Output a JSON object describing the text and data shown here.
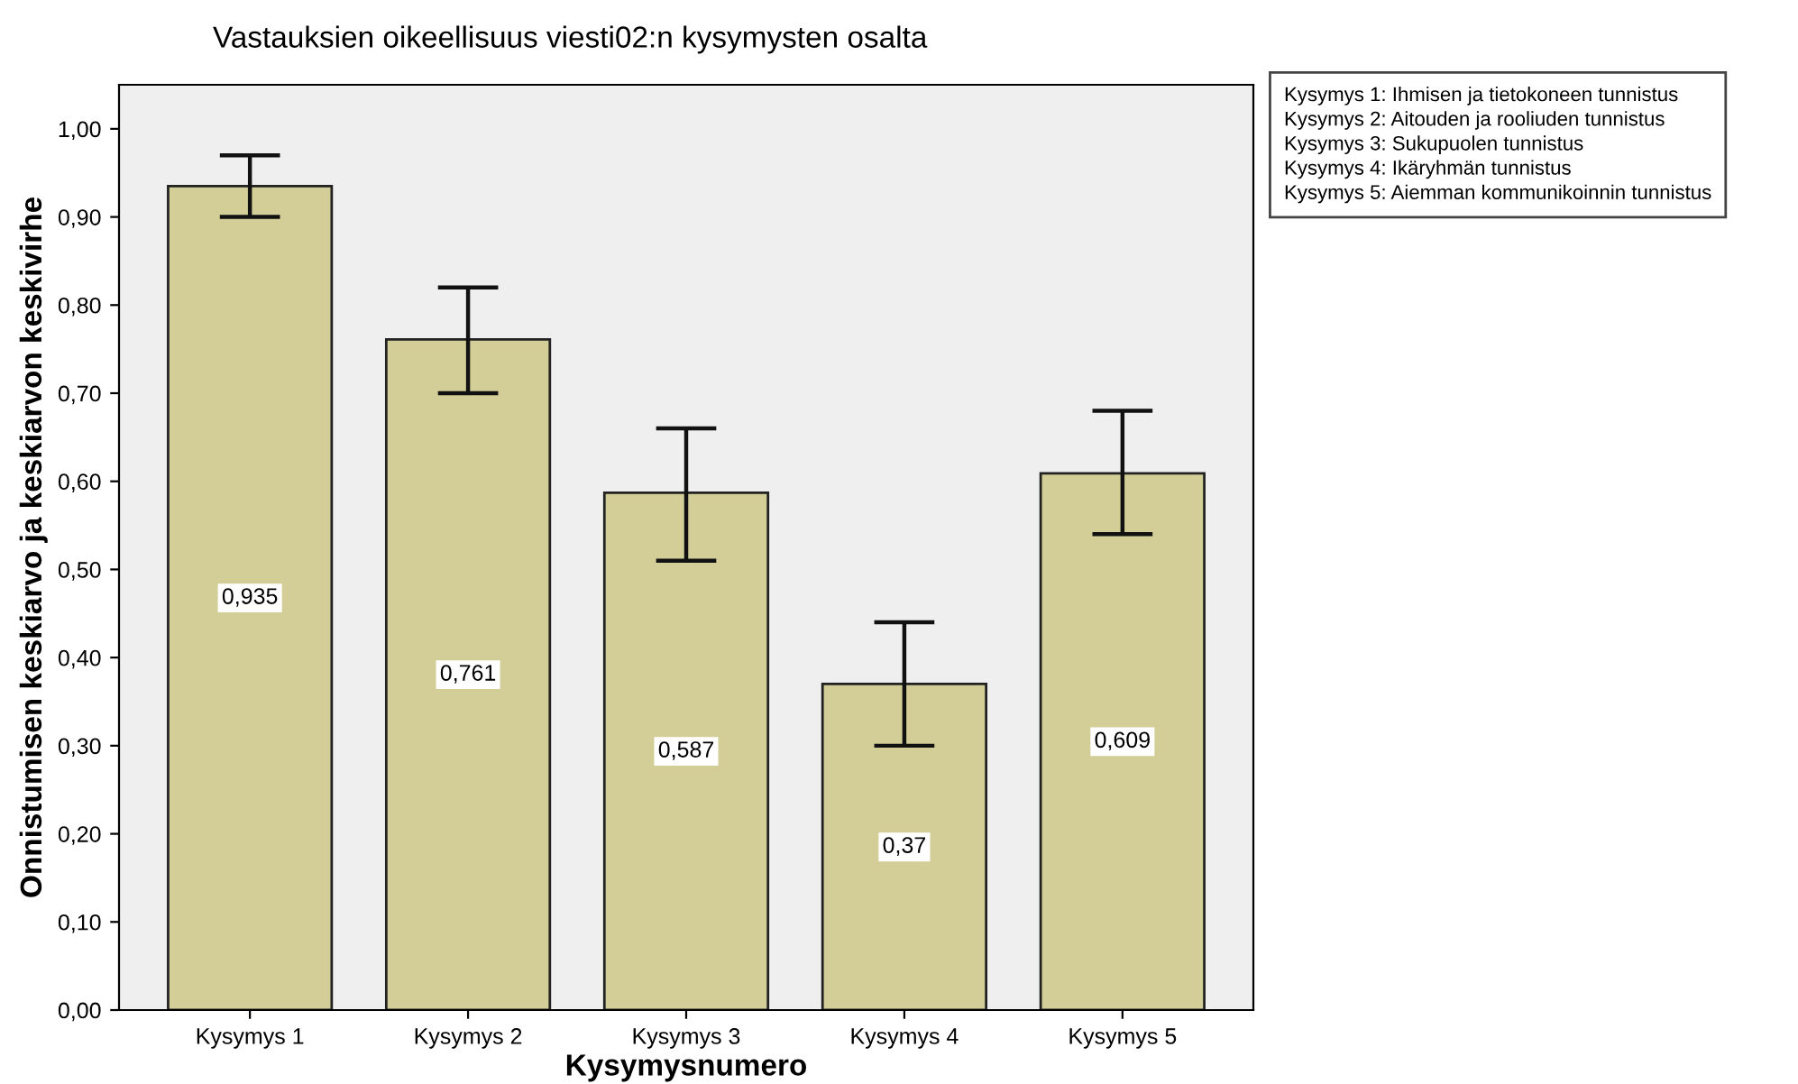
{
  "chart_data": {
    "type": "bar",
    "title": "Vastauksien oikeellisuus viesti02:n kysymysten osalta",
    "xlabel": "Kysymysnumero",
    "ylabel": "Onnistumisen keskiarvo ja keskiarvon keskivirhe",
    "categories": [
      "Kysymys 1",
      "Kysymys 2",
      "Kysymys 3",
      "Kysymys 4",
      "Kysymys 5"
    ],
    "values": [
      0.935,
      0.761,
      0.587,
      0.37,
      0.609
    ],
    "errors": [
      [
        0.9,
        0.97
      ],
      [
        0.7,
        0.82
      ],
      [
        0.51,
        0.66
      ],
      [
        0.3,
        0.44
      ],
      [
        0.54,
        0.68
      ]
    ],
    "color": "#d3ce97",
    "value_labels": [
      "0,935",
      "0,761",
      "0,587",
      "0,37",
      "0,609"
    ],
    "ylim": [
      0,
      1.05
    ],
    "yticks": [
      {
        "value": 0,
        "label": "0,00"
      },
      {
        "value": 0.1,
        "label": "0,10"
      },
      {
        "value": 0.2,
        "label": "0,20"
      },
      {
        "value": 0.3,
        "label": "0,30"
      },
      {
        "value": 0.4,
        "label": "0,40"
      },
      {
        "value": 0.5,
        "label": "0,50"
      },
      {
        "value": 0.6,
        "label": "0,60"
      },
      {
        "value": 0.7,
        "label": "0,70"
      },
      {
        "value": 0.8,
        "label": "0,80"
      },
      {
        "value": 0.9,
        "label": "0,90"
      },
      {
        "value": 1.0,
        "label": "1,00"
      }
    ],
    "grid": false,
    "annotations": [
      "Kysymys 1: Ihmisen ja tietokoneen tunnistus\nKysymys 2: Aitouden ja rooliuden tunnistus\nKysymys 3: Sukupuolen tunnistus\nKysymys 4: Ikäryhmän tunnistus\nKysymys 5: Aiemman kommunikoinnin tunnistus"
    ]
  }
}
